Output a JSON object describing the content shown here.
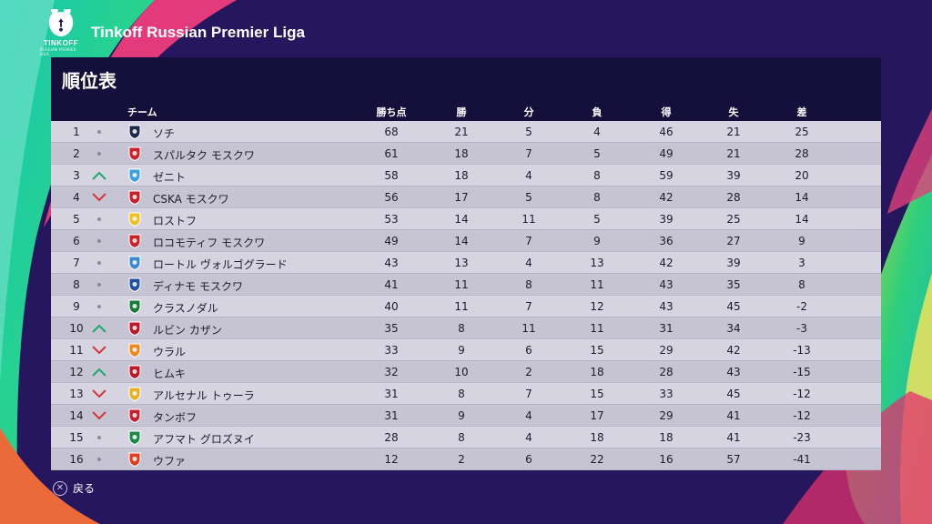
{
  "header": {
    "logo_text": "TINKOFF",
    "logo_subtext": "RUSSIAN PREMIER LIGA",
    "league_title": "Tinkoff Russian Premier Liga"
  },
  "panel": {
    "title": "順位表",
    "columns": {
      "team": "チーム",
      "pts": "勝ち点",
      "w": "勝",
      "d": "分",
      "l": "負",
      "gf": "得",
      "ga": "失",
      "gd": "差"
    }
  },
  "colors": {
    "up": "#1aa86a",
    "down": "#d8343a",
    "panel_dark": "#150f3c",
    "background": "#26165e"
  },
  "standings": [
    {
      "rank": "1",
      "trend": "same",
      "crest": "sochi-crest",
      "team": "ソチ",
      "pts": "68",
      "w": "21",
      "d": "5",
      "l": "4",
      "gf": "46",
      "ga": "21",
      "gd": "25"
    },
    {
      "rank": "2",
      "trend": "same",
      "crest": "spartak-crest",
      "team": "スパルタク モスクワ",
      "pts": "61",
      "w": "18",
      "d": "7",
      "l": "5",
      "gf": "49",
      "ga": "21",
      "gd": "28"
    },
    {
      "rank": "3",
      "trend": "up",
      "crest": "zenit-crest",
      "team": "ゼニト",
      "pts": "58",
      "w": "18",
      "d": "4",
      "l": "8",
      "gf": "59",
      "ga": "39",
      "gd": "20"
    },
    {
      "rank": "4",
      "trend": "down",
      "crest": "cska-crest",
      "team": "CSKA モスクワ",
      "pts": "56",
      "w": "17",
      "d": "5",
      "l": "8",
      "gf": "42",
      "ga": "28",
      "gd": "14"
    },
    {
      "rank": "5",
      "trend": "same",
      "crest": "rostov-crest",
      "team": "ロストフ",
      "pts": "53",
      "w": "14",
      "d": "11",
      "l": "5",
      "gf": "39",
      "ga": "25",
      "gd": "14"
    },
    {
      "rank": "6",
      "trend": "same",
      "crest": "lokomotiv-crest",
      "team": "ロコモティフ モスクワ",
      "pts": "49",
      "w": "14",
      "d": "7",
      "l": "9",
      "gf": "36",
      "ga": "27",
      "gd": "9"
    },
    {
      "rank": "7",
      "trend": "same",
      "crest": "rotor-crest",
      "team": "ロートル ヴォルゴグラード",
      "pts": "43",
      "w": "13",
      "d": "4",
      "l": "13",
      "gf": "42",
      "ga": "39",
      "gd": "3"
    },
    {
      "rank": "8",
      "trend": "same",
      "crest": "dinamo-crest",
      "team": "ディナモ モスクワ",
      "pts": "41",
      "w": "11",
      "d": "8",
      "l": "11",
      "gf": "43",
      "ga": "35",
      "gd": "8"
    },
    {
      "rank": "9",
      "trend": "same",
      "crest": "krasnodar-crest",
      "team": "クラスノダル",
      "pts": "40",
      "w": "11",
      "d": "7",
      "l": "12",
      "gf": "43",
      "ga": "45",
      "gd": "-2"
    },
    {
      "rank": "10",
      "trend": "up",
      "crest": "rubin-crest",
      "team": "ルビン カザン",
      "pts": "35",
      "w": "8",
      "d": "11",
      "l": "11",
      "gf": "31",
      "ga": "34",
      "gd": "-3"
    },
    {
      "rank": "11",
      "trend": "down",
      "crest": "ural-crest",
      "team": "ウラル",
      "pts": "33",
      "w": "9",
      "d": "6",
      "l": "15",
      "gf": "29",
      "ga": "42",
      "gd": "-13"
    },
    {
      "rank": "12",
      "trend": "up",
      "crest": "khimki-crest",
      "team": "ヒムキ",
      "pts": "32",
      "w": "10",
      "d": "2",
      "l": "18",
      "gf": "28",
      "ga": "43",
      "gd": "-15"
    },
    {
      "rank": "13",
      "trend": "down",
      "crest": "arsenal-crest",
      "team": "アルセナル トゥーラ",
      "pts": "31",
      "w": "8",
      "d": "7",
      "l": "15",
      "gf": "33",
      "ga": "45",
      "gd": "-12"
    },
    {
      "rank": "14",
      "trend": "down",
      "crest": "tambov-crest",
      "team": "タンボフ",
      "pts": "31",
      "w": "9",
      "d": "4",
      "l": "17",
      "gf": "29",
      "ga": "41",
      "gd": "-12"
    },
    {
      "rank": "15",
      "trend": "same",
      "crest": "akhmat-crest",
      "team": "アフマト グロズヌイ",
      "pts": "28",
      "w": "8",
      "d": "4",
      "l": "18",
      "gf": "18",
      "ga": "41",
      "gd": "-23"
    },
    {
      "rank": "16",
      "trend": "same",
      "crest": "ufa-crest",
      "team": "ウファ",
      "pts": "12",
      "w": "2",
      "d": "6",
      "l": "22",
      "gf": "16",
      "ga": "57",
      "gd": "-41"
    }
  ],
  "footer": {
    "back_icon": "cross-button-icon",
    "back_label": "戻る"
  }
}
